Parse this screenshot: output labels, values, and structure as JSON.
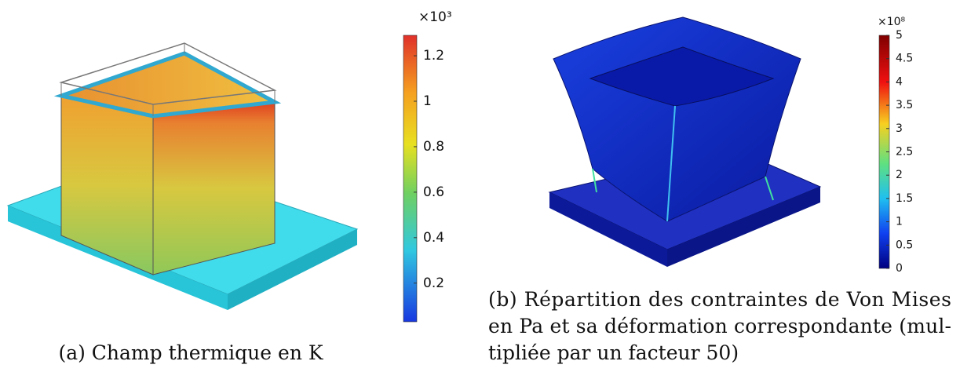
{
  "figures": [
    {
      "colorbar": {
        "multiplier": "×10³",
        "range": [
          0.03,
          1.29
        ],
        "ticks": [
          0.2,
          0.4,
          0.6,
          0.8,
          1,
          1.2
        ]
      },
      "caption": [
        "(a) Champ thermique en K"
      ]
    },
    {
      "colorbar": {
        "multiplier": "×10⁸",
        "range": [
          0,
          5
        ],
        "ticks": [
          0,
          0.5,
          1,
          1.5,
          2,
          2.5,
          3,
          3.5,
          4,
          4.5,
          5
        ]
      },
      "caption": [
        "(b) Répartition des contraintes de Von Mises",
        "en Pa et sa déformation correspondante (mul-",
        "tipliée par un facteur 50)"
      ]
    }
  ]
}
